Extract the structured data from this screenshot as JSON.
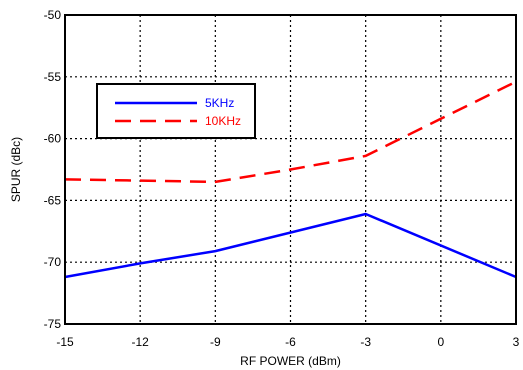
{
  "chart_data": {
    "type": "line",
    "title": "",
    "xlabel": "RF POWER (dBm)",
    "ylabel": "SPUR (dBc)",
    "xlim": [
      -15,
      3
    ],
    "ylim": [
      -75,
      -50
    ],
    "xticks": [
      -15,
      -12,
      -9,
      -6,
      -3,
      0,
      3
    ],
    "yticks": [
      -50,
      -55,
      -60,
      -65,
      -70,
      -75
    ],
    "xtick_labels": [
      "-15",
      "-12",
      "-9",
      "-6",
      "-3",
      "0",
      "3"
    ],
    "ytick_labels": [
      "-50",
      "-55",
      "-60",
      "-65",
      "-70",
      "-75"
    ],
    "grid": "dotted",
    "legend_position": "top-left",
    "series": [
      {
        "name": "5KHz",
        "color": "#0000ff",
        "linestyle": "solid",
        "x": [
          -15,
          -12,
          -9,
          -3,
          3
        ],
        "y": [
          -71.2,
          -70.1,
          -69.1,
          -66.1,
          -71.2
        ]
      },
      {
        "name": "10KHz",
        "color": "#ff0000",
        "linestyle": "dashed",
        "x": [
          -15,
          -12,
          -9,
          -6,
          -3,
          0,
          3
        ],
        "y": [
          -63.3,
          -63.4,
          -63.5,
          -62.5,
          -61.4,
          -58.4,
          -55.4
        ]
      }
    ]
  }
}
